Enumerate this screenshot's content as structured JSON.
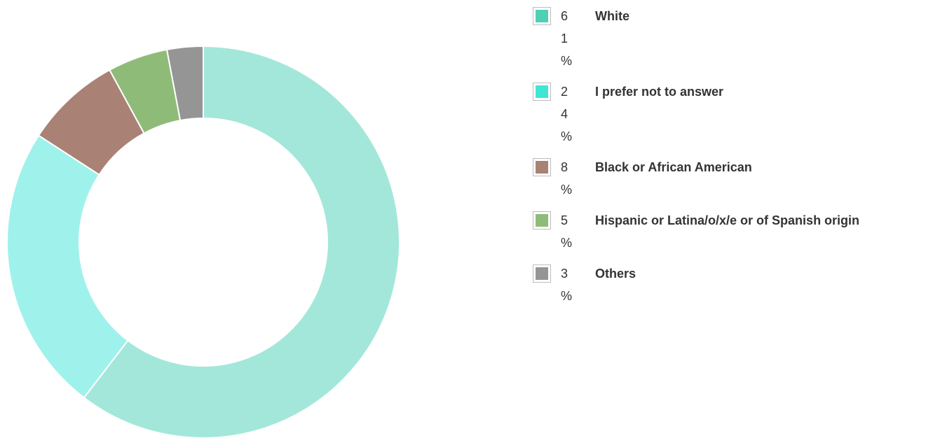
{
  "chart_data": {
    "type": "pie",
    "style": "donut",
    "categories": [
      "White",
      "I prefer not to answer",
      "Black or African American",
      "Hispanic or Latina/o/x/e or of Spanish origin",
      "Others"
    ],
    "values": [
      61,
      24,
      8,
      5,
      3
    ],
    "percent_labels": [
      "61%",
      "24%",
      "8%",
      "5%",
      "3%"
    ],
    "slice_colors": [
      "#a3e7da",
      "#9ff2eb",
      "#a98175",
      "#8fbb78",
      "#959595"
    ],
    "legend_colors": [
      "#4fd0b4",
      "#3fe6d6",
      "#a98175",
      "#8fbb78",
      "#959595"
    ],
    "legend_position": "top-right"
  }
}
